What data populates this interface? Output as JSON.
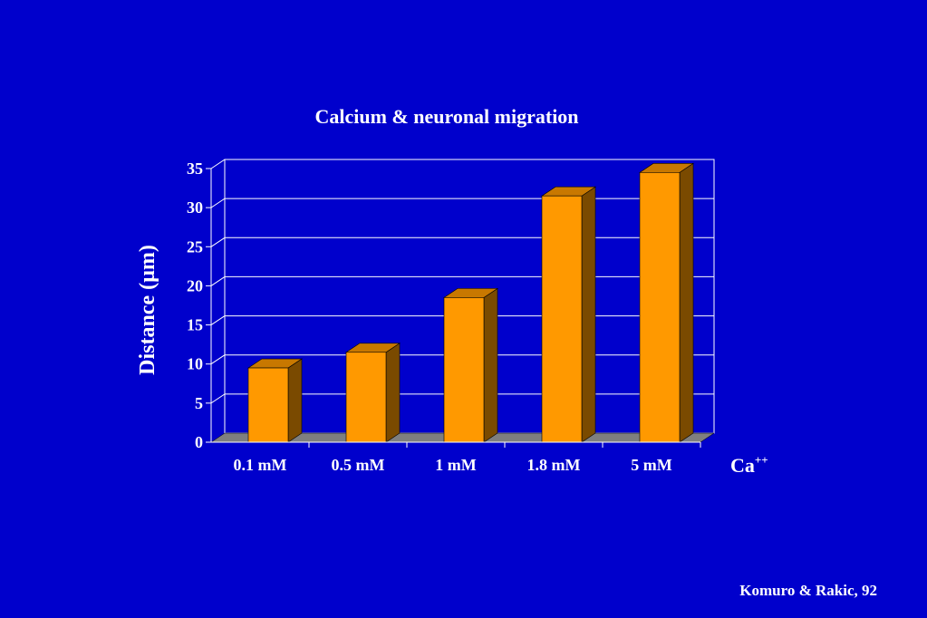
{
  "chart_data": {
    "type": "bar",
    "title": "Calcium & neuronal migration",
    "ylabel": "Distance (µm)",
    "xlabel": "Ca",
    "xlabel_sup": "++",
    "categories": [
      "0.1 mM",
      "0.5 mM",
      "1 mM",
      "1.8 mM",
      "5 mM"
    ],
    "values": [
      9.5,
      11.5,
      18.5,
      31.5,
      34.5
    ],
    "ylim": [
      0,
      35
    ],
    "yticks": [
      0,
      5,
      10,
      15,
      20,
      25,
      30,
      35
    ],
    "grid": true,
    "three_d": true
  },
  "colors": {
    "background": "#0000CC",
    "bar_front": "#FF9900",
    "bar_side": "#7A4A00",
    "bar_top": "#C87800",
    "floor": "#7F7F7F",
    "plot_area": "#0000CC",
    "gridline": "#FFFFFF",
    "text": "#FFFFFF"
  },
  "citation": "Komuro & Rakic, 92"
}
